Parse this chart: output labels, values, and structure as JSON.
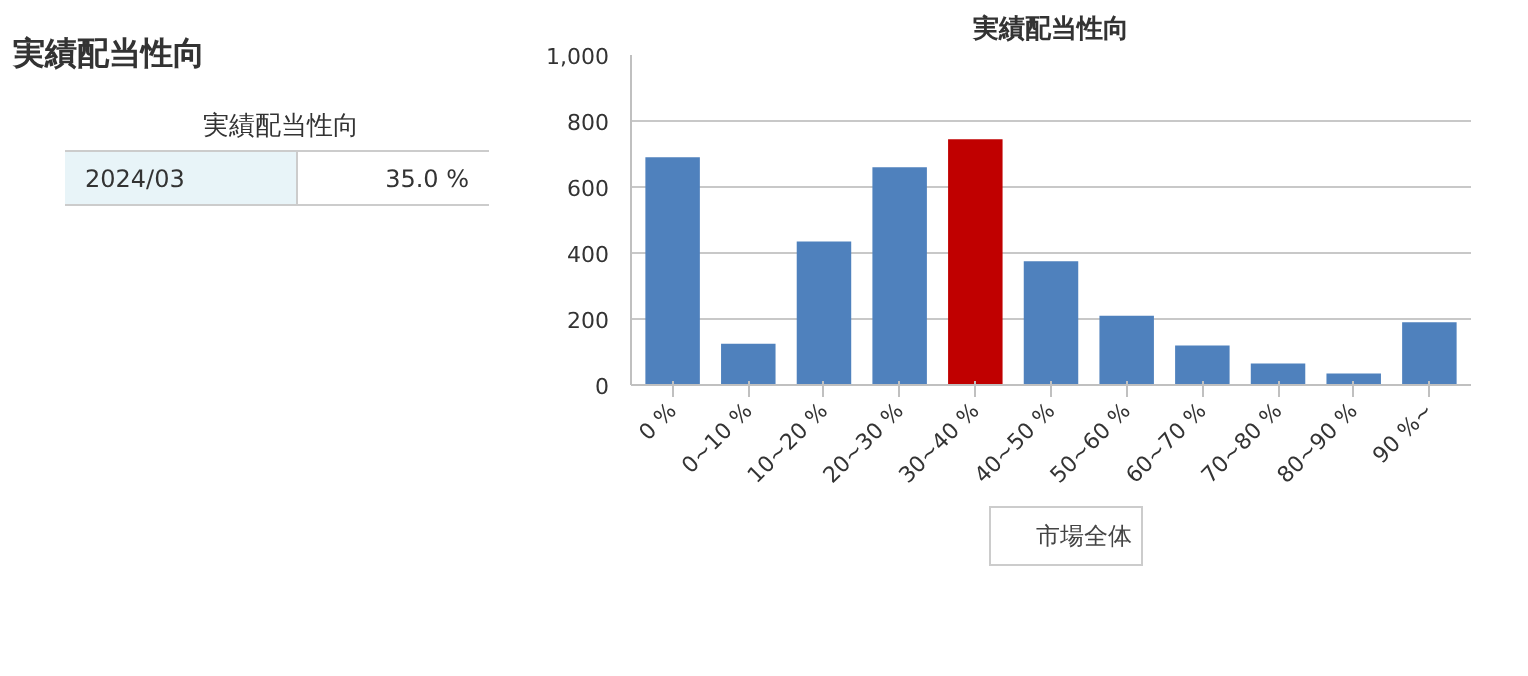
{
  "chart_data": [
    {
      "type": "other",
      "title": "実績配当性向",
      "subtitle": "実績配当性向",
      "annotations": [
        "2024/03",
        "35.0 %"
      ]
    },
    {
      "type": "bar",
      "title": "実績配当性向",
      "categories": [
        "0 %",
        "0~10 %",
        "10~20 %",
        "20~30 %",
        "30~40 %",
        "40~50 %",
        "50~60 %",
        "60~70 %",
        "70~80 %",
        "80~90 %",
        "90 %~"
      ],
      "series": [
        {
          "name": "市場全体",
          "color": "#4f81bd",
          "values": [
            690,
            125,
            435,
            660,
            null,
            375,
            210,
            120,
            65,
            35,
            190
          ]
        },
        {
          "color": "#c00000",
          "values": [
            null,
            null,
            null,
            null,
            745,
            null,
            null,
            null,
            null,
            null,
            null
          ]
        }
      ],
      "ylim": [
        0,
        1000
      ],
      "yticks": [
        0,
        {
          "value": 200,
          "label": "200"
        },
        400,
        600,
        800,
        {
          "value": 1000,
          "label": "1,000"
        }
      ],
      "grid": "y",
      "legend": "bottom"
    }
  ]
}
